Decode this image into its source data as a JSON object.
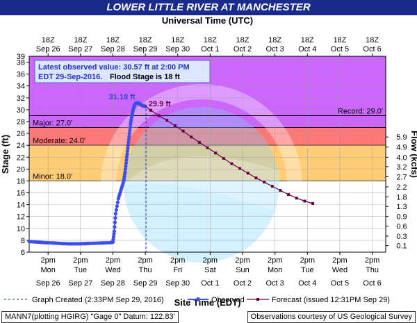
{
  "title": "LOWER LITTLE RIVER AT MANCHESTER",
  "chart_data": {
    "type": "line",
    "top_axis_label": "Universal Time (UTC)",
    "xlabel": "Site Time (EDT)",
    "ylabel": "Stage (ft)",
    "ylabel_right": "Flow (kcfs)",
    "ylim": [
      6,
      39
    ],
    "y_ticks": [
      6,
      8,
      10,
      12,
      14,
      16,
      18,
      20,
      22,
      24,
      26,
      28,
      30,
      32,
      34,
      36,
      38
    ],
    "extra_y_tick_label": "39",
    "flow_ticks": [
      {
        "stage": 7.1,
        "label": "0.1"
      },
      {
        "stage": 8.7,
        "label": "0.3"
      },
      {
        "stage": 10.4,
        "label": "0.6"
      },
      {
        "stage": 12.0,
        "label": "0.9"
      },
      {
        "stage": 13.7,
        "label": "1.3"
      },
      {
        "stage": 15.3,
        "label": "1.8"
      },
      {
        "stage": 17.0,
        "label": "2.2"
      },
      {
        "stage": 18.7,
        "label": "2.7"
      },
      {
        "stage": 20.4,
        "label": "3.2"
      },
      {
        "stage": 22.0,
        "label": "4.0"
      },
      {
        "stage": 23.7,
        "label": "4.9"
      },
      {
        "stage": 25.4,
        "label": "5.9"
      }
    ],
    "x_range_days": [
      "Sep 26 0:00",
      "Oct 7 0:00"
    ],
    "bottom_ticks": [
      [
        "Mon",
        "Sep 26"
      ],
      [
        "Tue",
        "Sep 27"
      ],
      [
        "Wed",
        "Sep 28"
      ],
      [
        "Thu",
        "Sep 29"
      ],
      [
        "Fri",
        "Sep 30"
      ],
      [
        "Sat",
        "Oct 1"
      ],
      [
        "Sun",
        "Oct 2"
      ],
      [
        "Mon",
        "Oct 3"
      ],
      [
        "Tue",
        "Oct 4"
      ],
      [
        "Wed",
        "Oct 5"
      ],
      [
        "Thu",
        "Oct 6"
      ]
    ],
    "bottom_tick_time": "2pm",
    "top_ticks": [
      "Sep 26",
      "Sep 27",
      "Sep 28",
      "Sep 29",
      "Sep 30",
      "Oct 1",
      "Oct 2",
      "Oct 3",
      "Oct 4",
      "Oct 5",
      "Oct 6"
    ],
    "top_tick_time": "18Z",
    "flood_bands": [
      {
        "name": "Major: 27.0'",
        "from": 27,
        "to": 39,
        "color": "#cc66ff"
      },
      {
        "name": "Moderate: 24.0'",
        "from": 24,
        "to": 27,
        "color": "#ff7777"
      },
      {
        "name": "Minor: 18.0'",
        "from": 18,
        "to": 24,
        "color": "#ffcc77"
      }
    ],
    "record_label": "Record: 29.0'",
    "record_stage": 29,
    "graph_created_hours": 86.55,
    "observed": [
      [
        0,
        7.8
      ],
      [
        6,
        7.7
      ],
      [
        12,
        7.6
      ],
      [
        18,
        7.55
      ],
      [
        24,
        7.45
      ],
      [
        30,
        7.4
      ],
      [
        36,
        7.4
      ],
      [
        42,
        7.45
      ],
      [
        48,
        7.5
      ],
      [
        54,
        7.55
      ],
      [
        60,
        7.6
      ],
      [
        62,
        7.7
      ],
      [
        63,
        9.5
      ],
      [
        64,
        12.5
      ],
      [
        66,
        15.0
      ],
      [
        68,
        16.5
      ],
      [
        70,
        18.0
      ],
      [
        71,
        19.5
      ],
      [
        72,
        21.5
      ],
      [
        73,
        23.5
      ],
      [
        74,
        25.5
      ],
      [
        75,
        27.5
      ],
      [
        76,
        29.0
      ],
      [
        77,
        30.0
      ],
      [
        78,
        30.8
      ],
      [
        79,
        31.1
      ],
      [
        80,
        31.18
      ],
      [
        81,
        31.1
      ],
      [
        82,
        30.95
      ],
      [
        83,
        30.8
      ],
      [
        84,
        30.7
      ],
      [
        85,
        30.6
      ],
      [
        86,
        30.57
      ]
    ],
    "observed_peak_label": "31.18 ft",
    "forecast": [
      [
        86,
        30.57
      ],
      [
        90,
        29.9
      ],
      [
        96,
        29.0
      ],
      [
        102,
        28.2
      ],
      [
        108,
        27.3
      ],
      [
        114,
        26.4
      ],
      [
        120,
        25.4
      ],
      [
        126,
        24.5
      ],
      [
        132,
        23.6
      ],
      [
        138,
        22.7
      ],
      [
        144,
        21.8
      ],
      [
        150,
        20.9
      ],
      [
        156,
        20.1
      ],
      [
        162,
        19.3
      ],
      [
        168,
        18.5
      ],
      [
        174,
        17.8
      ],
      [
        180,
        17.1
      ],
      [
        186,
        16.4
      ],
      [
        192,
        15.7
      ],
      [
        198,
        15.1
      ],
      [
        204,
        14.6
      ],
      [
        210,
        14.2
      ]
    ],
    "forecast_peak_label": "29.9 ft",
    "annotation_line1": "Latest observed value: 30.57 ft at 2:00 PM",
    "annotation_line2": "EDT 29-Sep-2016.",
    "annotation_flood": "Flood Stage is 18 ft",
    "legend": [
      {
        "label": "Graph Created (2:33PM Sep 29, 2016)",
        "style": "dashed",
        "color": "#1a2b8c"
      },
      {
        "label": "Observed",
        "style": "line-dot",
        "color": "#3d4fe8"
      },
      {
        "label": "Forecast (issued 12:31PM Sep 29)",
        "style": "line-square",
        "color": "#660044"
      }
    ],
    "colors": {
      "observed": "#3d4fe8",
      "forecast": "#660044",
      "created": "#2233aa",
      "plot_bg": "#ffffff",
      "grid": "#999999"
    }
  },
  "footer": {
    "left": "MANN7(plotting HGIRG) \"Gage 0\" Datum: 122.83'",
    "right": "Observations courtesy of US Geological Survey"
  }
}
